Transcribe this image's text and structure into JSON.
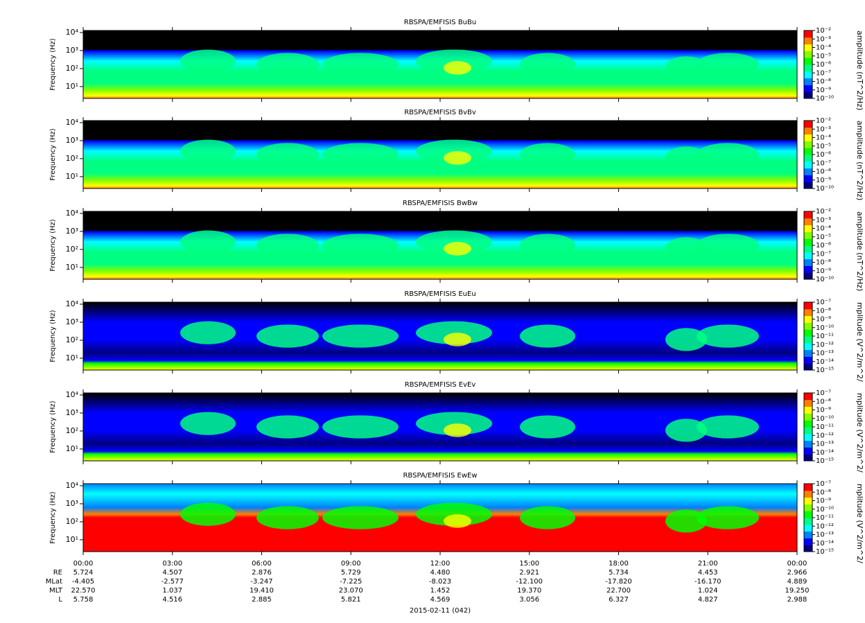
{
  "chart_data": [
    {
      "type": "spectrogram",
      "title": "RBSPA/EMFISIS  BuBu",
      "y_label": "Frequency (Hz)",
      "yscale": "log",
      "ylim": [
        2.2,
        13000
      ],
      "yticks": [
        {
          "value": 10,
          "label": "10¹"
        },
        {
          "value": 100,
          "label": "10²"
        },
        {
          "value": 1000,
          "label": "10³"
        },
        {
          "value": 10000,
          "label": "10⁴"
        }
      ],
      "colorbar_label": "amplitude (nT^2/Hz)",
      "colorbar_lim": [
        1e-10,
        0.01
      ],
      "colorbar_ticks": [
        {
          "value": 1e-10,
          "label": "10⁻¹⁰"
        },
        {
          "value": 1e-09,
          "label": "10⁻⁹"
        },
        {
          "value": 1e-08,
          "label": "10⁻⁸"
        },
        {
          "value": 1e-07,
          "label": "10⁻⁷"
        },
        {
          "value": 1e-06,
          "label": "10⁻⁶"
        },
        {
          "value": 1e-05,
          "label": "10⁻⁵"
        },
        {
          "value": 0.0001,
          "label": "10⁻⁴"
        },
        {
          "value": 0.001,
          "label": "10⁻³"
        },
        {
          "value": 0.01,
          "label": "10⁻²"
        }
      ],
      "colormap": [
        "#000080",
        "#0000ff",
        "#0080ff",
        "#00ffff",
        "#00ff80",
        "#00ff00",
        "#80ff00",
        "#ffff00",
        "#ff8000",
        "#ff0000"
      ]
    },
    {
      "type": "spectrogram",
      "title": "RBSPA/EMFISIS  BvBv",
      "y_label": "Frequency (Hz)",
      "yscale": "log",
      "ylim": [
        2.2,
        13000
      ],
      "yticks": [
        {
          "value": 10,
          "label": "10¹"
        },
        {
          "value": 100,
          "label": "10²"
        },
        {
          "value": 1000,
          "label": "10³"
        },
        {
          "value": 10000,
          "label": "10⁴"
        }
      ],
      "colorbar_label": "amplitude (nT^2/Hz)",
      "colorbar_lim": [
        1e-10,
        0.01
      ],
      "colorbar_ticks": [
        {
          "value": 1e-10,
          "label": "10⁻¹⁰"
        },
        {
          "value": 1e-09,
          "label": "10⁻⁹"
        },
        {
          "value": 1e-08,
          "label": "10⁻⁸"
        },
        {
          "value": 1e-07,
          "label": "10⁻⁷"
        },
        {
          "value": 1e-06,
          "label": "10⁻⁶"
        },
        {
          "value": 1e-05,
          "label": "10⁻⁵"
        },
        {
          "value": 0.0001,
          "label": "10⁻⁴"
        },
        {
          "value": 0.001,
          "label": "10⁻³"
        },
        {
          "value": 0.01,
          "label": "10⁻²"
        }
      ],
      "colormap": [
        "#000080",
        "#0000ff",
        "#0080ff",
        "#00ffff",
        "#00ff80",
        "#00ff00",
        "#80ff00",
        "#ffff00",
        "#ff8000",
        "#ff0000"
      ]
    },
    {
      "type": "spectrogram",
      "title": "RBSPA/EMFISIS  BwBw",
      "y_label": "Frequency (Hz)",
      "yscale": "log",
      "ylim": [
        2.2,
        13000
      ],
      "yticks": [
        {
          "value": 10,
          "label": "10¹"
        },
        {
          "value": 100,
          "label": "10²"
        },
        {
          "value": 1000,
          "label": "10³"
        },
        {
          "value": 10000,
          "label": "10⁴"
        }
      ],
      "colorbar_label": "amplitude (nT^2/Hz)",
      "colorbar_lim": [
        1e-10,
        0.01
      ],
      "colorbar_ticks": [
        {
          "value": 1e-10,
          "label": "10⁻¹⁰"
        },
        {
          "value": 1e-09,
          "label": "10⁻⁹"
        },
        {
          "value": 1e-08,
          "label": "10⁻⁸"
        },
        {
          "value": 1e-07,
          "label": "10⁻⁷"
        },
        {
          "value": 1e-06,
          "label": "10⁻⁶"
        },
        {
          "value": 1e-05,
          "label": "10⁻⁵"
        },
        {
          "value": 0.0001,
          "label": "10⁻⁴"
        },
        {
          "value": 0.001,
          "label": "10⁻³"
        },
        {
          "value": 0.01,
          "label": "10⁻²"
        }
      ],
      "colormap": [
        "#000080",
        "#0000ff",
        "#0080ff",
        "#00ffff",
        "#00ff80",
        "#00ff00",
        "#80ff00",
        "#ffff00",
        "#ff8000",
        "#ff0000"
      ]
    },
    {
      "type": "spectrogram",
      "title": "RBSPA/EMFISIS  EuEu",
      "y_label": "Frequency (Hz)",
      "yscale": "log",
      "ylim": [
        2.2,
        13000
      ],
      "yticks": [
        {
          "value": 10,
          "label": "10¹"
        },
        {
          "value": 100,
          "label": "10²"
        },
        {
          "value": 1000,
          "label": "10³"
        },
        {
          "value": 10000,
          "label": "10⁴"
        }
      ],
      "colorbar_label": "mplitude (V^2/m^2/",
      "colorbar_lim": [
        1e-15,
        1e-07
      ],
      "colorbar_ticks": [
        {
          "value": 1e-15,
          "label": "10⁻¹⁵"
        },
        {
          "value": 1e-14,
          "label": "10⁻¹⁴"
        },
        {
          "value": 1e-13,
          "label": "10⁻¹³"
        },
        {
          "value": 1e-12,
          "label": "10⁻¹²"
        },
        {
          "value": 1e-11,
          "label": "10⁻¹¹"
        },
        {
          "value": 1e-10,
          "label": "10⁻¹⁰"
        },
        {
          "value": 1e-09,
          "label": "10⁻⁹"
        },
        {
          "value": 1e-08,
          "label": "10⁻⁸"
        },
        {
          "value": 1e-07,
          "label": "10⁻⁷"
        }
      ],
      "colormap": [
        "#000080",
        "#0000ff",
        "#0080ff",
        "#00ffff",
        "#00ff80",
        "#00ff00",
        "#80ff00",
        "#ffff00",
        "#ff8000",
        "#ff0000"
      ]
    },
    {
      "type": "spectrogram",
      "title": "RBSPA/EMFISIS  EvEv",
      "y_label": "Frequency (Hz)",
      "yscale": "log",
      "ylim": [
        2.2,
        13000
      ],
      "yticks": [
        {
          "value": 10,
          "label": "10¹"
        },
        {
          "value": 100,
          "label": "10²"
        },
        {
          "value": 1000,
          "label": "10³"
        },
        {
          "value": 10000,
          "label": "10⁴"
        }
      ],
      "colorbar_label": "mplitude (V^2/m^2/",
      "colorbar_lim": [
        1e-15,
        1e-07
      ],
      "colorbar_ticks": [
        {
          "value": 1e-15,
          "label": "10⁻¹⁵"
        },
        {
          "value": 1e-14,
          "label": "10⁻¹⁴"
        },
        {
          "value": 1e-13,
          "label": "10⁻¹³"
        },
        {
          "value": 1e-12,
          "label": "10⁻¹²"
        },
        {
          "value": 1e-11,
          "label": "10⁻¹¹"
        },
        {
          "value": 1e-10,
          "label": "10⁻¹⁰"
        },
        {
          "value": 1e-09,
          "label": "10⁻⁹"
        },
        {
          "value": 1e-08,
          "label": "10⁻⁸"
        },
        {
          "value": 1e-07,
          "label": "10⁻⁷"
        }
      ],
      "colormap": [
        "#000080",
        "#0000ff",
        "#0080ff",
        "#00ffff",
        "#00ff80",
        "#00ff00",
        "#80ff00",
        "#ffff00",
        "#ff8000",
        "#ff0000"
      ]
    },
    {
      "type": "spectrogram",
      "title": "RBSPA/EMFISIS  EwEw",
      "y_label": "Frequency (Hz)",
      "yscale": "log",
      "ylim": [
        2.2,
        13000
      ],
      "yticks": [
        {
          "value": 10,
          "label": "10¹"
        },
        {
          "value": 100,
          "label": "10²"
        },
        {
          "value": 1000,
          "label": "10³"
        },
        {
          "value": 10000,
          "label": "10⁴"
        }
      ],
      "colorbar_label": "mplitude (V^2/m^2/",
      "colorbar_lim": [
        1e-15,
        1e-07
      ],
      "colorbar_ticks": [
        {
          "value": 1e-15,
          "label": "10⁻¹⁵"
        },
        {
          "value": 1e-14,
          "label": "10⁻¹⁴"
        },
        {
          "value": 1e-13,
          "label": "10⁻¹³"
        },
        {
          "value": 1e-12,
          "label": "10⁻¹²"
        },
        {
          "value": 1e-11,
          "label": "10⁻¹¹"
        },
        {
          "value": 1e-10,
          "label": "10⁻¹⁰"
        },
        {
          "value": 1e-09,
          "label": "10⁻⁹"
        },
        {
          "value": 1e-08,
          "label": "10⁻⁸"
        },
        {
          "value": 1e-07,
          "label": "10⁻⁷"
        }
      ],
      "colormap": [
        "#000080",
        "#0000ff",
        "#0080ff",
        "#00ffff",
        "#00ff80",
        "#00ff00",
        "#80ff00",
        "#ffff00",
        "#ff8000",
        "#ff0000"
      ],
      "xlim": [
        0,
        24
      ],
      "xticks": [
        {
          "value": 0,
          "label": "00:00"
        },
        {
          "value": 3,
          "label": "03:00"
        },
        {
          "value": 6,
          "label": "06:00"
        },
        {
          "value": 9,
          "label": "09:00"
        },
        {
          "value": 12,
          "label": "12:00"
        },
        {
          "value": 15,
          "label": "15:00"
        },
        {
          "value": 18,
          "label": "18:00"
        },
        {
          "value": 21,
          "label": "21:00"
        },
        {
          "value": 24,
          "label": "00:00"
        }
      ],
      "ephemeris": [
        {
          "name": "RE",
          "values": [
            "5.724",
            "4.507",
            "2.876",
            "5.729",
            "4.480",
            "2.921",
            "5.734",
            "4.453",
            "2.966"
          ]
        },
        {
          "name": "MLat",
          "values": [
            "-4.405",
            "-2.577",
            "-3.247",
            "-7.225",
            "-8.023",
            "-12.100",
            "-17.820",
            "-16.170",
            "4.889"
          ]
        },
        {
          "name": "MLT",
          "values": [
            "22.570",
            "1.037",
            "19.410",
            "23.070",
            "1.452",
            "19.370",
            "22.700",
            "1.024",
            "19.250"
          ]
        },
        {
          "name": "L",
          "values": [
            "5.758",
            "4.516",
            "2.885",
            "5.821",
            "4.569",
            "3.056",
            "6.327",
            "4.827",
            "2.988"
          ]
        }
      ],
      "x_label": "2015-02-11 (042)"
    }
  ]
}
